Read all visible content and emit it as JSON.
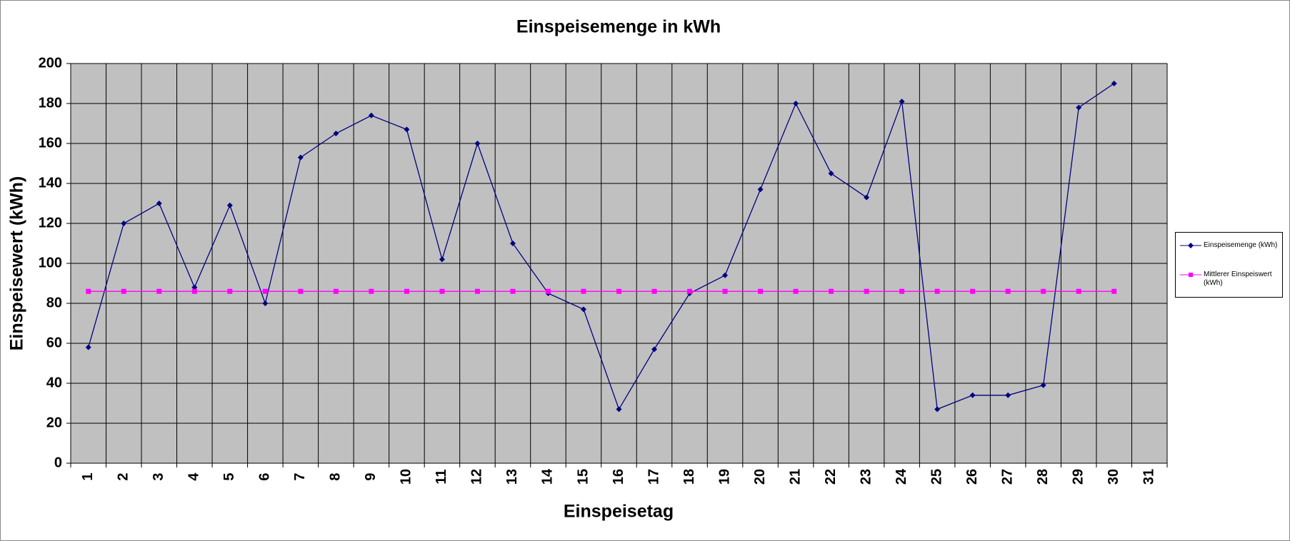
{
  "chart_data": {
    "type": "line",
    "title": "Einspeisemenge in kWh",
    "x_label": "Einspeisetag",
    "y_label": "Einspeisewert  (kWh)",
    "categories": [
      "1",
      "2",
      "3",
      "4",
      "5",
      "6",
      "7",
      "8",
      "9",
      "10",
      "11",
      "12",
      "13",
      "14",
      "15",
      "16",
      "17",
      "18",
      "19",
      "20",
      "21",
      "22",
      "23",
      "24",
      "25",
      "26",
      "27",
      "28",
      "29",
      "30",
      "31"
    ],
    "series": [
      {
        "name": "Einspeisemenge (kWh)",
        "color": "#000080",
        "marker": "diamond",
        "values": [
          58,
          120,
          130,
          88,
          129,
          80,
          153,
          165,
          174,
          167,
          102,
          160,
          110,
          85,
          77,
          27,
          57,
          85,
          94,
          137,
          180,
          145,
          133,
          181,
          27,
          34,
          34,
          39,
          178,
          190,
          null
        ]
      },
      {
        "name": "Mittlerer Einspeiswert (kWh)",
        "color": "#ff00ff",
        "marker": "square",
        "values": [
          86,
          86,
          86,
          86,
          86,
          86,
          86,
          86,
          86,
          86,
          86,
          86,
          86,
          86,
          86,
          86,
          86,
          86,
          86,
          86,
          86,
          86,
          86,
          86,
          86,
          86,
          86,
          86,
          86,
          86,
          null
        ]
      }
    ],
    "ylim": [
      0,
      200
    ],
    "yticks": [
      0,
      20,
      40,
      60,
      80,
      100,
      120,
      140,
      160,
      180,
      200
    ],
    "grid": true,
    "plot_background": "#c0c0c0",
    "legend": "right"
  }
}
